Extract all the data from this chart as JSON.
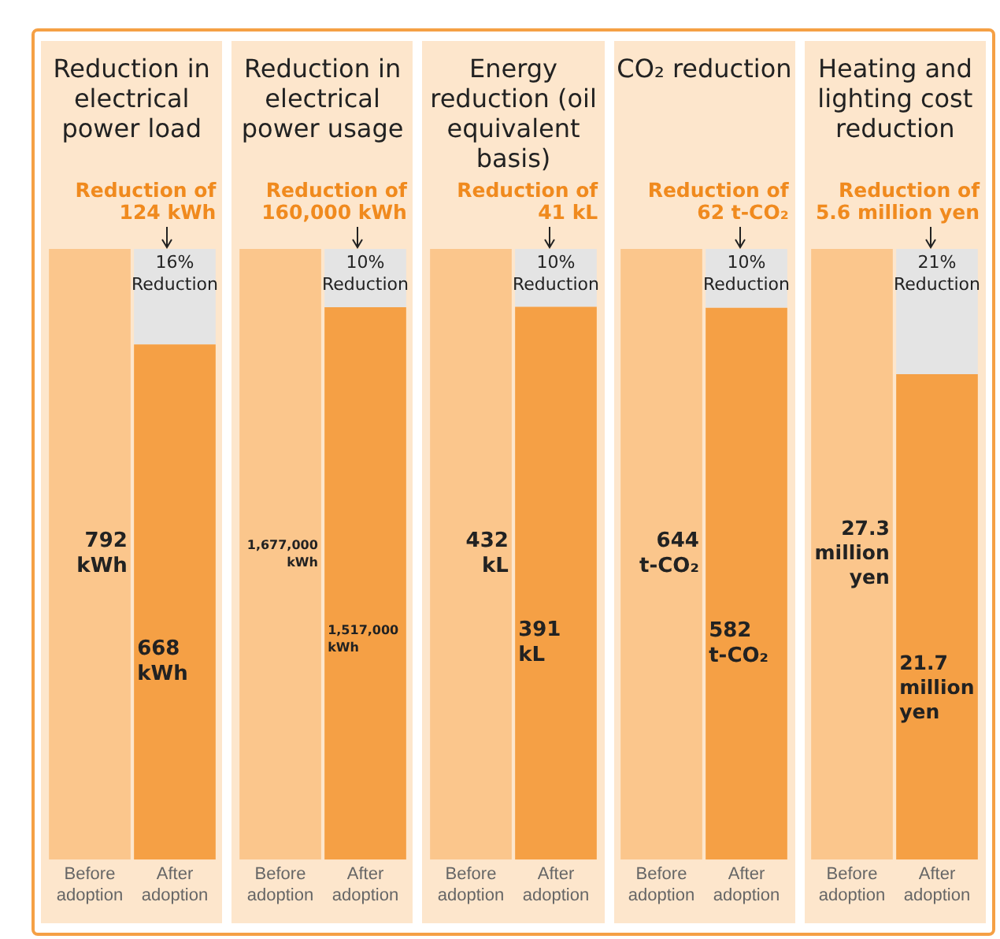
{
  "chart_data": [
    {
      "type": "bar",
      "title": "Reduction in electrical power load",
      "annotations": [
        "Reduction of 124 kWh",
        "16% Reduction"
      ],
      "categories": [
        "Before adoption",
        "After adoption"
      ],
      "stacked": true,
      "series": [
        {
          "colors": [
            "#fbc68c",
            "#f5a045"
          ],
          "values": [
            792,
            668
          ],
          "value_labels": [
            "792 kWh",
            "668 kWh"
          ]
        },
        {
          "color": "#e4e4e4",
          "values": [
            null,
            124
          ]
        }
      ]
    },
    {
      "type": "bar",
      "title": "Reduction in electrical power usage",
      "annotations": [
        "Reduction of 160,000 kWh",
        "10% Reduction"
      ],
      "categories": [
        "Before adoption",
        "After adoption"
      ],
      "stacked": true,
      "series": [
        {
          "colors": [
            "#fbc68c",
            "#f5a045"
          ],
          "values": [
            1677000,
            1517000
          ],
          "value_labels": [
            "1,677,000 kWh",
            "1,517,000 kWh"
          ]
        },
        {
          "color": "#e4e4e4",
          "values": [
            null,
            160000
          ]
        }
      ]
    },
    {
      "type": "bar",
      "title": "Energy reduction (oil equivalent basis)",
      "annotations": [
        "Reduction of 41 kL",
        "10% Reduction"
      ],
      "categories": [
        "Before adoption",
        "After adoption"
      ],
      "stacked": true,
      "series": [
        {
          "colors": [
            "#fbc68c",
            "#f5a045"
          ],
          "values": [
            432,
            391
          ],
          "value_labels": [
            "432 kL",
            "391 kL"
          ]
        },
        {
          "color": "#e4e4e4",
          "values": [
            null,
            41
          ]
        }
      ]
    },
    {
      "type": "bar",
      "title": "CO₂ reduction",
      "annotations": [
        "Reduction of 62 t-CO₂",
        "10% Reduction"
      ],
      "categories": [
        "Before adoption",
        "After adoption"
      ],
      "stacked": true,
      "series": [
        {
          "colors": [
            "#fbc68c",
            "#f5a045"
          ],
          "values": [
            644,
            582
          ],
          "value_labels": [
            "644 t-CO₂",
            "582 t-CO₂"
          ]
        },
        {
          "color": "#e4e4e4",
          "values": [
            null,
            62
          ]
        }
      ]
    },
    {
      "type": "bar",
      "title": "Heating and lighting cost reduction",
      "annotations": [
        "Reduction of 5.6 million yen",
        "21% Reduction"
      ],
      "categories": [
        "Before adoption",
        "After adoption"
      ],
      "stacked": true,
      "series": [
        {
          "colors": [
            "#fbc68c",
            "#f5a045"
          ],
          "values": [
            27.3,
            21.7
          ],
          "value_labels": [
            "27.3 million yen",
            "21.7 million yen"
          ]
        },
        {
          "color": "#e4e4e4",
          "values": [
            null,
            5.6
          ]
        }
      ]
    }
  ]
}
